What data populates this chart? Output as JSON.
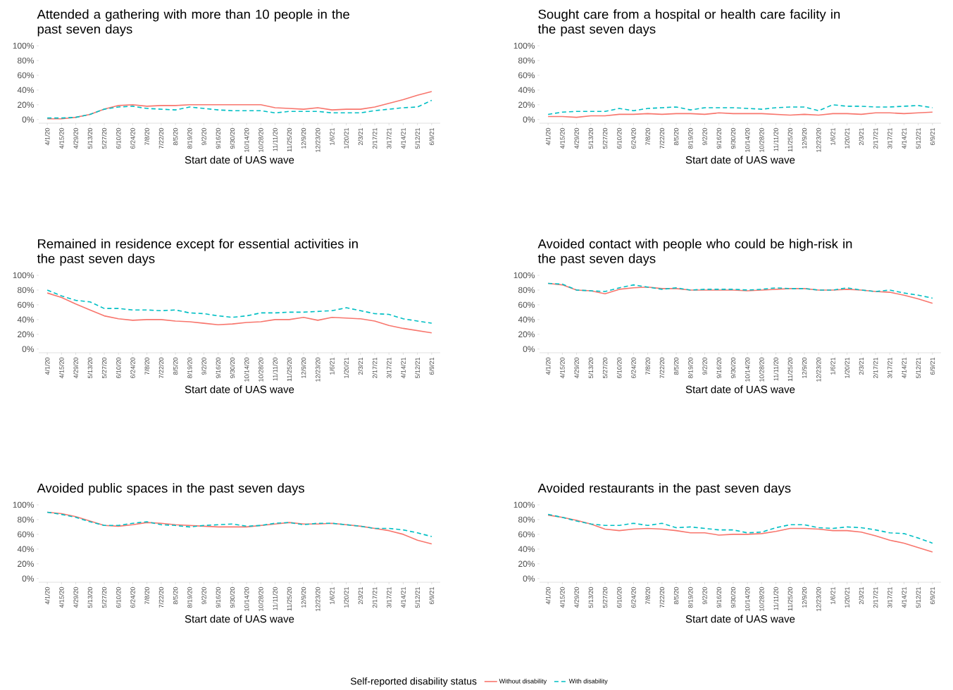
{
  "chart_data": [
    {
      "type": "line",
      "title": "Attended a gathering with more than 10 people in the past seven days",
      "xlabel": "Start date of UAS wave",
      "categories": [
        "4/1/20",
        "4/15/20",
        "4/29/20",
        "5/13/20",
        "5/27/20",
        "6/10/20",
        "6/24/20",
        "7/8/20",
        "7/22/20",
        "8/5/20",
        "8/19/20",
        "9/2/20",
        "9/16/20",
        "9/30/20",
        "10/14/20",
        "10/28/20",
        "11/11/20",
        "11/25/20",
        "12/9/20",
        "12/23/20",
        "1/6/21",
        "1/20/21",
        "2/3/21",
        "2/17/21",
        "3/17/21",
        "4/14/21",
        "5/12/21",
        "6/9/21"
      ],
      "ylim": [
        -5,
        100
      ],
      "yticks": [
        {
          "value": 0,
          "label": "0%"
        },
        {
          "value": 20,
          "label": "20%"
        },
        {
          "value": 40,
          "label": "40%"
        },
        {
          "value": 60,
          "label": "60%"
        },
        {
          "value": 80,
          "label": "80%"
        },
        {
          "value": 100,
          "label": "100%"
        }
      ],
      "series": [
        {
          "color": "#f8766d",
          "line_style": "solid",
          "values": [
            1,
            1,
            3,
            7,
            14,
            19,
            20,
            18,
            19,
            19,
            20,
            20,
            20,
            20,
            20,
            20,
            16,
            15,
            14,
            16,
            13,
            14,
            14,
            17,
            22,
            27,
            33,
            38
          ]
        },
        {
          "color": "#00bfc4",
          "line_style": "dashed",
          "values": [
            2,
            2,
            3,
            7,
            14,
            17,
            18,
            15,
            14,
            13,
            17,
            15,
            13,
            12,
            12,
            12,
            9,
            11,
            11,
            11,
            9,
            9,
            9,
            12,
            14,
            16,
            17,
            26
          ]
        }
      ]
    },
    {
      "type": "line",
      "title": "Sought care from a hospital or health care facility in the past seven days",
      "xlabel": "Start date of UAS wave",
      "categories": [
        "4/1/20",
        "4/15/20",
        "4/29/20",
        "5/13/20",
        "5/27/20",
        "6/10/20",
        "6/24/20",
        "7/8/20",
        "7/22/20",
        "8/5/20",
        "8/19/20",
        "9/2/20",
        "9/16/20",
        "9/30/20",
        "10/14/20",
        "10/28/20",
        "11/11/20",
        "11/25/20",
        "12/9/20",
        "12/23/20",
        "1/6/21",
        "1/20/21",
        "2/3/21",
        "2/17/21",
        "3/17/21",
        "4/14/21",
        "5/12/21",
        "6/9/21"
      ],
      "ylim": [
        -5,
        100
      ],
      "yticks": [
        {
          "value": 0,
          "label": "0%"
        },
        {
          "value": 20,
          "label": "20%"
        },
        {
          "value": 40,
          "label": "40%"
        },
        {
          "value": 60,
          "label": "60%"
        },
        {
          "value": 80,
          "label": "80%"
        },
        {
          "value": 100,
          "label": "100%"
        }
      ],
      "series": [
        {
          "color": "#f8766d",
          "line_style": "solid",
          "values": [
            4,
            4,
            3,
            5,
            5,
            7,
            7,
            8,
            7,
            8,
            8,
            7,
            9,
            8,
            8,
            8,
            7,
            6,
            7,
            6,
            8,
            8,
            7,
            9,
            9,
            8,
            9,
            10
          ]
        },
        {
          "color": "#00bfc4",
          "line_style": "dashed",
          "values": [
            7,
            10,
            11,
            11,
            11,
            15,
            12,
            15,
            16,
            17,
            13,
            16,
            16,
            16,
            15,
            14,
            16,
            17,
            17,
            12,
            20,
            18,
            18,
            17,
            17,
            18,
            19,
            16
          ]
        }
      ]
    },
    {
      "type": "line",
      "title": "Remained in residence except for essential activities in the past seven days",
      "xlabel": "Start date of UAS wave",
      "categories": [
        "4/1/20",
        "4/15/20",
        "4/29/20",
        "5/13/20",
        "5/27/20",
        "6/10/20",
        "6/24/20",
        "7/8/20",
        "7/22/20",
        "8/5/20",
        "8/19/20",
        "9/2/20",
        "9/16/20",
        "9/30/20",
        "10/14/20",
        "10/28/20",
        "11/11/20",
        "11/25/20",
        "12/9/20",
        "12/23/20",
        "1/6/21",
        "1/20/21",
        "2/3/21",
        "2/17/21",
        "3/17/21",
        "4/14/21",
        "5/12/21",
        "6/9/21"
      ],
      "ylim": [
        -5,
        100
      ],
      "yticks": [
        {
          "value": 0,
          "label": "0%"
        },
        {
          "value": 20,
          "label": "20%"
        },
        {
          "value": 40,
          "label": "40%"
        },
        {
          "value": 60,
          "label": "60%"
        },
        {
          "value": 80,
          "label": "80%"
        },
        {
          "value": 100,
          "label": "100%"
        }
      ],
      "series": [
        {
          "color": "#f8766d",
          "line_style": "solid",
          "values": [
            76,
            70,
            61,
            53,
            45,
            41,
            39,
            40,
            40,
            38,
            37,
            35,
            33,
            34,
            36,
            37,
            40,
            40,
            43,
            39,
            43,
            42,
            41,
            38,
            32,
            28,
            25,
            22
          ]
        },
        {
          "color": "#00bfc4",
          "line_style": "dashed",
          "values": [
            80,
            72,
            66,
            64,
            55,
            55,
            53,
            53,
            52,
            53,
            49,
            48,
            45,
            43,
            45,
            49,
            49,
            50,
            50,
            51,
            52,
            56,
            52,
            48,
            47,
            41,
            38,
            35
          ]
        }
      ]
    },
    {
      "type": "line",
      "title": "Avoided contact with people who could be high-risk in the past seven days",
      "xlabel": "Start date of UAS wave",
      "categories": [
        "4/1/20",
        "4/15/20",
        "4/29/20",
        "5/13/20",
        "5/27/20",
        "6/10/20",
        "6/24/20",
        "7/8/20",
        "7/22/20",
        "8/5/20",
        "8/19/20",
        "9/2/20",
        "9/16/20",
        "9/30/20",
        "10/14/20",
        "10/28/20",
        "11/11/20",
        "11/25/20",
        "12/9/20",
        "12/23/20",
        "1/6/21",
        "1/20/21",
        "2/3/21",
        "2/17/21",
        "3/17/21",
        "4/14/21",
        "5/12/21",
        "6/9/21"
      ],
      "ylim": [
        -5,
        100
      ],
      "yticks": [
        {
          "value": 0,
          "label": "0%"
        },
        {
          "value": 20,
          "label": "20%"
        },
        {
          "value": 40,
          "label": "40%"
        },
        {
          "value": 60,
          "label": "60%"
        },
        {
          "value": 80,
          "label": "80%"
        },
        {
          "value": 100,
          "label": "100%"
        }
      ],
      "series": [
        {
          "color": "#f8766d",
          "line_style": "solid",
          "values": [
            89,
            87,
            80,
            79,
            75,
            81,
            83,
            84,
            82,
            82,
            80,
            80,
            80,
            80,
            79,
            80,
            81,
            82,
            82,
            80,
            80,
            81,
            80,
            78,
            77,
            73,
            68,
            62
          ]
        },
        {
          "color": "#00bfc4",
          "line_style": "dashed",
          "values": [
            89,
            88,
            80,
            79,
            78,
            83,
            87,
            84,
            81,
            83,
            80,
            81,
            81,
            81,
            80,
            81,
            83,
            82,
            82,
            80,
            80,
            83,
            80,
            78,
            80,
            76,
            73,
            69
          ]
        }
      ]
    },
    {
      "type": "line",
      "title": "Avoided public spaces in the past seven days",
      "xlabel": "Start date of UAS wave",
      "categories": [
        "4/1/20",
        "4/15/20",
        "4/29/20",
        "5/13/20",
        "5/27/20",
        "6/10/20",
        "6/24/20",
        "7/8/20",
        "7/22/20",
        "8/5/20",
        "8/19/20",
        "9/2/20",
        "9/16/20",
        "9/30/20",
        "10/14/20",
        "10/28/20",
        "11/11/20",
        "11/25/20",
        "12/9/20",
        "12/23/20",
        "1/6/21",
        "1/20/21",
        "2/3/21",
        "2/17/21",
        "3/17/21",
        "4/14/21",
        "5/12/21",
        "6/9/21"
      ],
      "ylim": [
        -5,
        100
      ],
      "yticks": [
        {
          "value": 0,
          "label": "0%"
        },
        {
          "value": 20,
          "label": "20%"
        },
        {
          "value": 40,
          "label": "40%"
        },
        {
          "value": 60,
          "label": "60%"
        },
        {
          "value": 80,
          "label": "80%"
        },
        {
          "value": 100,
          "label": "100%"
        }
      ],
      "series": [
        {
          "color": "#f8766d",
          "line_style": "solid",
          "values": [
            90,
            88,
            84,
            78,
            72,
            71,
            73,
            76,
            75,
            73,
            72,
            71,
            70,
            70,
            70,
            72,
            74,
            76,
            74,
            74,
            75,
            73,
            71,
            68,
            65,
            60,
            52,
            47
          ]
        },
        {
          "color": "#00bfc4",
          "line_style": "dashed",
          "values": [
            90,
            87,
            83,
            77,
            72,
            72,
            75,
            77,
            73,
            72,
            70,
            72,
            73,
            74,
            71,
            72,
            75,
            76,
            73,
            75,
            75,
            73,
            71,
            68,
            68,
            66,
            62,
            57
          ]
        }
      ]
    },
    {
      "type": "line",
      "title": "Avoided restaurants in the past seven days",
      "xlabel": "Start date of UAS wave",
      "legend": "bottom",
      "legend_title": "Self-reported disability status",
      "categories": [
        "4/1/20",
        "4/15/20",
        "4/29/20",
        "5/13/20",
        "5/27/20",
        "6/10/20",
        "6/24/20",
        "7/8/20",
        "7/22/20",
        "8/5/20",
        "8/19/20",
        "9/2/20",
        "9/16/20",
        "9/30/20",
        "10/14/20",
        "10/28/20",
        "11/11/20",
        "11/25/20",
        "12/9/20",
        "12/23/20",
        "1/6/21",
        "1/20/21",
        "2/3/21",
        "2/17/21",
        "3/17/21",
        "4/14/21",
        "5/12/21",
        "6/9/21"
      ],
      "ylim": [
        -5,
        100
      ],
      "yticks": [
        {
          "value": 0,
          "label": "0%"
        },
        {
          "value": 20,
          "label": "20%"
        },
        {
          "value": 40,
          "label": "40%"
        },
        {
          "value": 60,
          "label": "60%"
        },
        {
          "value": 80,
          "label": "80%"
        },
        {
          "value": 100,
          "label": "100%"
        }
      ],
      "series": [
        {
          "name": "Without disability",
          "color": "#f8766d",
          "line_style": "solid",
          "values": [
            86,
            83,
            79,
            74,
            67,
            65,
            67,
            68,
            67,
            65,
            62,
            62,
            59,
            60,
            60,
            61,
            64,
            68,
            68,
            67,
            65,
            65,
            63,
            58,
            52,
            48,
            42,
            36
          ]
        },
        {
          "name": "With disability",
          "color": "#00bfc4",
          "line_style": "dashed",
          "values": [
            87,
            83,
            78,
            74,
            72,
            72,
            75,
            72,
            75,
            69,
            70,
            68,
            66,
            66,
            62,
            63,
            69,
            73,
            73,
            69,
            68,
            70,
            69,
            66,
            62,
            61,
            55,
            48
          ]
        }
      ]
    }
  ]
}
